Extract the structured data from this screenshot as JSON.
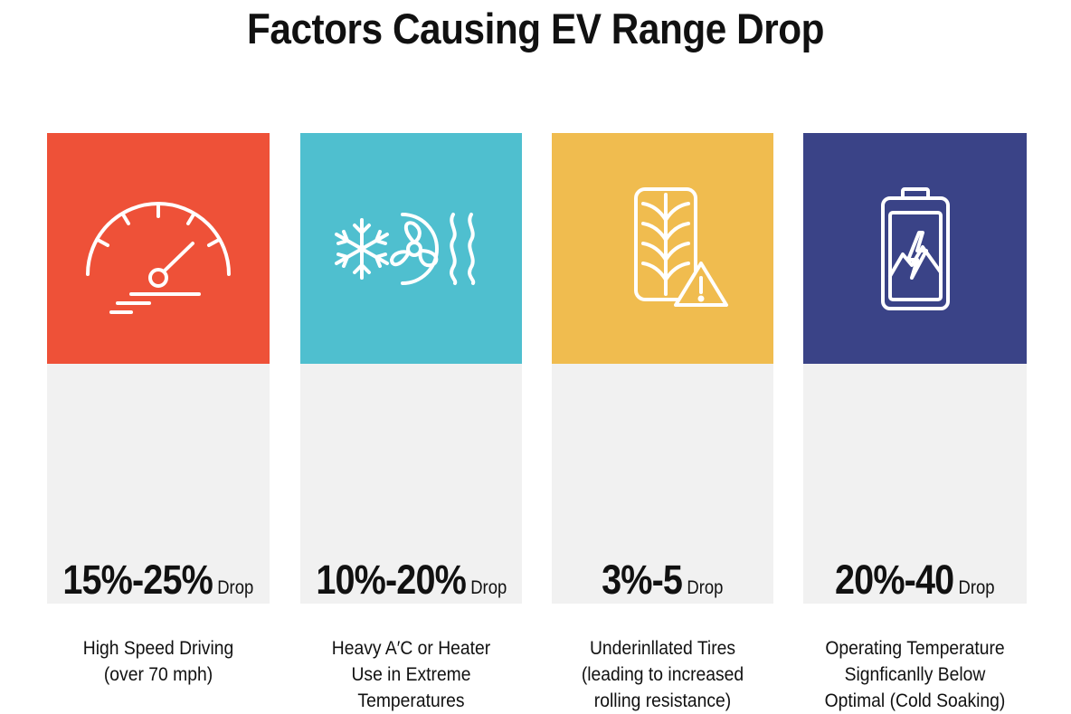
{
  "title": "Factors Causing EV Range Drop",
  "cards": [
    {
      "color": "#EE5138",
      "icon": "speedometer-icon",
      "value": "15%-25%",
      "unit": "Drop",
      "lines": [
        "High Speed Driving",
        "(over 70 mph)"
      ]
    },
    {
      "color": "#4FBFCF",
      "icon": "climate-control-icon",
      "value": "10%-20%",
      "unit": "Drop",
      "lines": [
        "Heavy A′C or Heater",
        "Use in Extreme",
        "Temperatures"
      ]
    },
    {
      "color": "#F0BC4F",
      "icon": "tire-warning-icon",
      "value": "3%-5",
      "unit": "Drop",
      "lines": [
        "Underinllated Tires",
        "(leading to increased",
        "rolling resistance)"
      ]
    },
    {
      "color": "#3A4387",
      "icon": "cold-battery-icon",
      "value": "20%-40",
      "unit": "Drop",
      "lines": [
        "Operating Temperature",
        "Signficanlly Below",
        "Optimal (Cold Soaking)"
      ]
    }
  ]
}
